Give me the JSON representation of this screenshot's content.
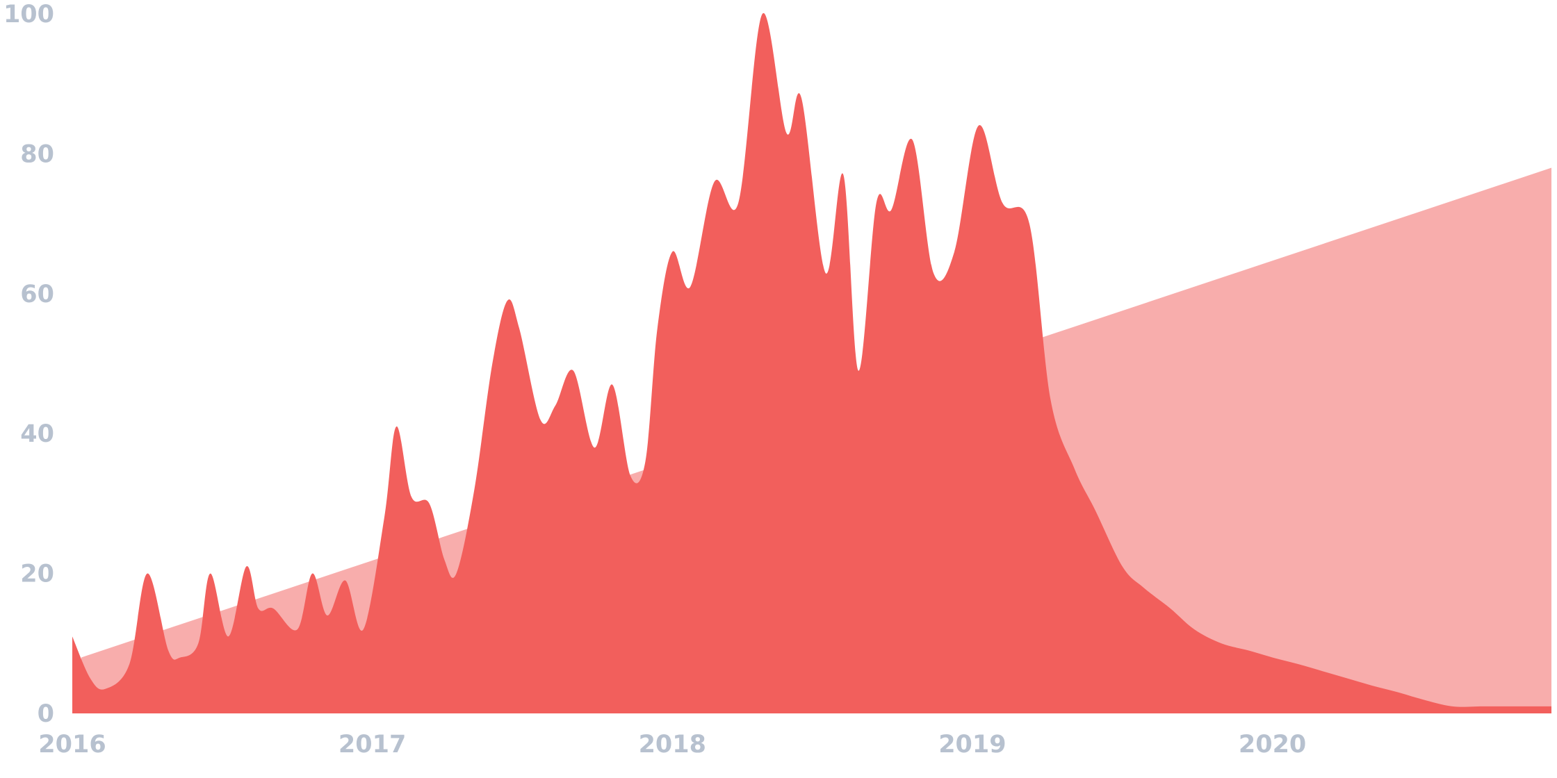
{
  "chart_data": {
    "type": "area",
    "title": "",
    "xlabel": "",
    "ylabel": "",
    "ylim": [
      0,
      100
    ],
    "xlim": [
      2016.0,
      2020.93
    ],
    "x_ticks": [
      "2016",
      "2017",
      "2018",
      "2019",
      "2020"
    ],
    "y_ticks": [
      "0",
      "20",
      "40",
      "60",
      "80",
      "100"
    ],
    "grid": false,
    "legend": "none",
    "colors": {
      "series": "#f25f5c",
      "trend": "#f8adac",
      "tick_text": "#b7c1cf"
    },
    "series": [
      {
        "x": [
          2016.0,
          2016.06,
          2016.11,
          2016.19,
          2016.25,
          2016.32,
          2016.36,
          2016.42,
          2016.46,
          2016.52,
          2016.58,
          2016.62,
          2016.67,
          2016.75,
          2016.8,
          2016.85,
          2016.91,
          2016.97,
          2017.04,
          2017.08,
          2017.13,
          2017.19,
          2017.24,
          2017.28,
          2017.34,
          2017.4,
          2017.45,
          2017.49,
          2017.56,
          2017.61,
          2017.67,
          2017.74,
          2017.8,
          2017.86,
          2017.91,
          2017.95,
          2018.0,
          2018.06,
          2018.14,
          2018.22,
          2018.3,
          2018.38,
          2018.43,
          2018.51,
          2018.57,
          2018.62,
          2018.68,
          2018.73,
          2018.8,
          2018.87,
          2018.94,
          2019.02,
          2019.1,
          2019.19,
          2019.26,
          2019.34,
          2019.41,
          2019.5,
          2019.57,
          2019.66,
          2019.74,
          2019.83,
          2019.92,
          2020.0,
          2020.09,
          2020.17,
          2020.25,
          2020.33,
          2020.42,
          2020.5,
          2020.6,
          2020.7,
          2020.78,
          2020.86,
          2020.93
        ],
        "values": [
          11,
          5,
          3.5,
          7,
          20,
          9,
          8,
          10,
          20,
          11,
          21,
          15,
          15,
          12,
          20,
          14,
          19,
          12,
          28,
          41,
          31,
          30,
          22,
          20,
          32,
          50,
          59,
          55,
          42,
          44,
          49,
          38,
          47,
          34,
          36,
          55,
          66,
          61,
          76,
          73,
          100,
          83,
          88,
          63,
          77,
          49,
          73,
          72,
          82,
          63,
          66,
          84,
          73,
          70,
          45,
          35,
          29,
          21,
          18,
          15,
          12,
          10,
          9,
          8,
          7,
          6,
          5,
          4,
          3,
          2,
          1,
          1,
          1,
          1,
          1
        ]
      }
    ],
    "trend": {
      "x": [
        2016.03,
        2020.93
      ],
      "values": [
        8,
        78
      ]
    }
  }
}
